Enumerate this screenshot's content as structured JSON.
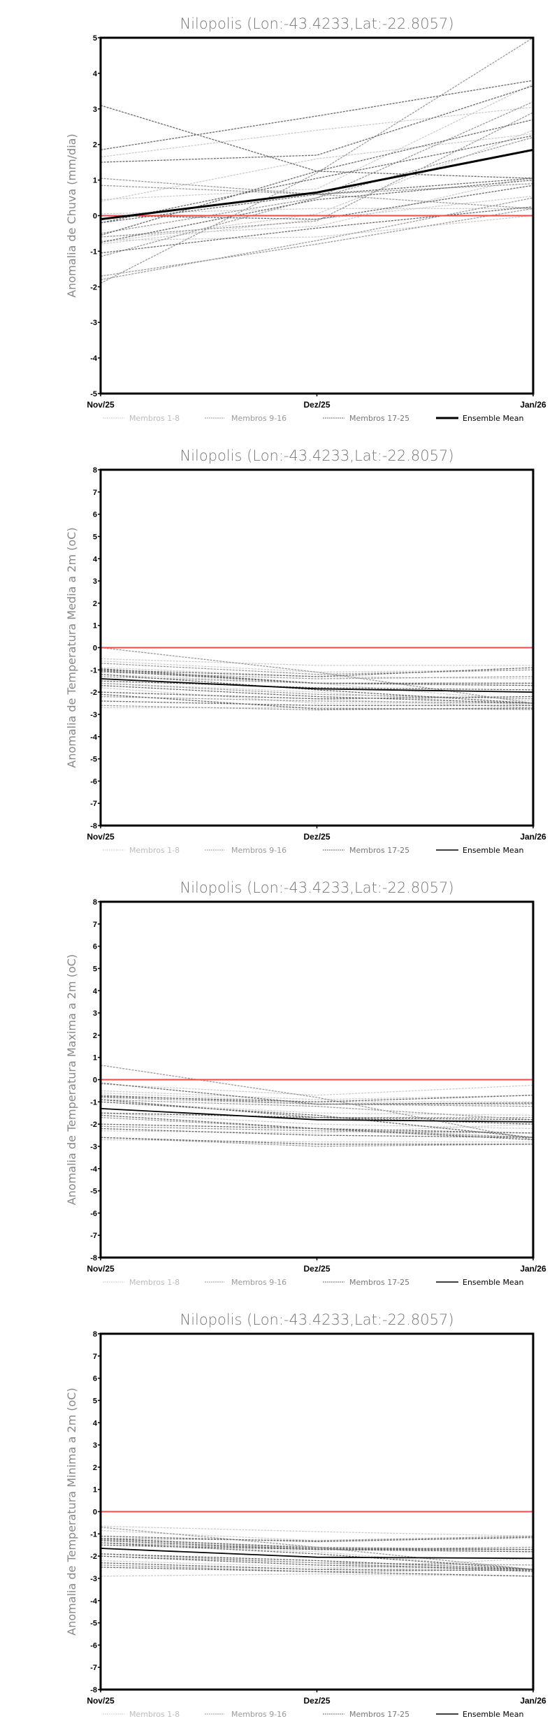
{
  "colors": {
    "members_1_8": "#cccccc",
    "members_9_16": "#9a9a9a",
    "members_17_25": "#6a6a6a",
    "ensemble": "#000000",
    "zero_line": "#f04a4a"
  },
  "chart_data": [
    {
      "type": "line",
      "title": "Nilopolis (Lon:-43.4233,Lat:-22.8057)",
      "ylabel": "Anomalia de Chuva (mm/dia)",
      "xlabel": "",
      "categories": [
        "Nov/25",
        "Dez/25",
        "Jan/26"
      ],
      "ylim": [
        -5,
        5
      ],
      "yticks": [
        -5,
        -4,
        -3,
        -2,
        -1,
        0,
        1,
        2,
        3,
        4,
        5
      ],
      "legend": [
        "Membros 1-8",
        "Membros 9-16",
        "Membros 17-25",
        "Ensemble Mean"
      ],
      "ensemble_mean": [
        -0.1,
        0.65,
        1.85
      ],
      "members": [
        [
          1.65,
          2.4,
          3.05
        ],
        [
          0.45,
          0.75,
          3.7
        ],
        [
          -0.75,
          0.05,
          2.4
        ],
        [
          -0.8,
          -0.1,
          0.55
        ],
        [
          0.4,
          1.6,
          2.3
        ],
        [
          -0.6,
          -0.3,
          1.1
        ],
        [
          0.05,
          0.2,
          0.2
        ],
        [
          -0.7,
          -0.6,
          0.0
        ],
        [
          -1.9,
          1.2,
          5.0
        ],
        [
          -1.7,
          -0.8,
          0.2
        ],
        [
          -0.5,
          0.5,
          2.2
        ],
        [
          1.05,
          0.6,
          0.2
        ],
        [
          -1.15,
          0.5,
          3.2
        ],
        [
          0.85,
          0.6,
          0.9
        ],
        [
          -1.8,
          -0.7,
          0.5
        ],
        [
          -0.6,
          -0.15,
          2.9
        ],
        [
          1.85,
          2.8,
          3.8
        ],
        [
          3.1,
          1.25,
          1.05
        ],
        [
          1.5,
          1.7,
          3.65
        ],
        [
          -0.55,
          1.25,
          2.7
        ],
        [
          -0.2,
          1.05,
          2.25
        ],
        [
          -1.05,
          -0.35,
          0.25
        ],
        [
          -0.75,
          0.45,
          1.0
        ],
        [
          0.0,
          -0.1,
          0.85
        ],
        [
          -0.2,
          0.6,
          1.05
        ]
      ]
    },
    {
      "type": "line",
      "title": "Nilopolis (Lon:-43.4233,Lat:-22.8057)",
      "ylabel": "Anomalia de Temperatura Media a 2m (oC)",
      "xlabel": "",
      "categories": [
        "Nov/25",
        "Dez/25",
        "Jan/26"
      ],
      "ylim": [
        -8,
        8
      ],
      "yticks": [
        -8,
        -7,
        -6,
        -5,
        -4,
        -3,
        -2,
        -1,
        0,
        1,
        2,
        3,
        4,
        5,
        6,
        7,
        8
      ],
      "legend": [
        "Membros 1-8",
        "Membros 9-16",
        "Membros 17-25",
        "Ensemble Mean"
      ],
      "ensemble_mean": [
        -1.4,
        -1.85,
        -2.0
      ],
      "members": [
        [
          -0.5,
          -0.8,
          -0.8
        ],
        [
          -0.6,
          -1.1,
          -1.0
        ],
        [
          -0.9,
          -1.3,
          -1.4
        ],
        [
          -1.2,
          -1.6,
          -2.4
        ],
        [
          -1.6,
          -2.0,
          -2.6
        ],
        [
          -2.0,
          -2.3,
          -2.7
        ],
        [
          -2.7,
          -2.7,
          -2.8
        ],
        [
          -1.8,
          -2.5,
          -2.5
        ],
        [
          0.0,
          -1.1,
          -2.5
        ],
        [
          -0.7,
          -1.2,
          -1.0
        ],
        [
          -1.0,
          -1.6,
          -1.7
        ],
        [
          -1.3,
          -1.6,
          -1.6
        ],
        [
          -1.6,
          -2.1,
          -2.3
        ],
        [
          -2.2,
          -2.4,
          -2.5
        ],
        [
          -2.6,
          -2.8,
          -2.7
        ],
        [
          -1.1,
          -1.4,
          -1.3
        ],
        [
          -1.0,
          -1.3,
          -0.9
        ],
        [
          -1.05,
          -1.6,
          -1.6
        ],
        [
          -1.5,
          -1.8,
          -1.9
        ],
        [
          -1.7,
          -2.2,
          -2.5
        ],
        [
          -2.0,
          -2.3,
          -2.2
        ],
        [
          -2.4,
          -2.6,
          -2.6
        ],
        [
          -1.2,
          -1.9,
          -2.5
        ],
        [
          -0.95,
          -1.6,
          -1.7
        ],
        [
          -2.1,
          -2.75,
          -2.75
        ]
      ]
    },
    {
      "type": "line",
      "title": "Nilopolis (Lon:-43.4233,Lat:-22.8057)",
      "ylabel": "Anomalia de Temperatura Maxima a 2m (oC)",
      "xlabel": "",
      "categories": [
        "Nov/25",
        "Dez/25",
        "Jan/26"
      ],
      "ylim": [
        -8,
        8
      ],
      "yticks": [
        -8,
        -7,
        -6,
        -5,
        -4,
        -3,
        -2,
        -1,
        0,
        1,
        2,
        3,
        4,
        5,
        6,
        7,
        8
      ],
      "legend": [
        "Membros 1-8",
        "Membros 9-16",
        "Membros 17-25",
        "Ensemble Mean"
      ],
      "ensemble_mean": [
        -1.3,
        -1.8,
        -1.9
      ],
      "members": [
        [
          -0.2,
          -0.7,
          -0.25
        ],
        [
          -0.5,
          -0.9,
          -0.7
        ],
        [
          -0.6,
          -1.0,
          -1.0
        ],
        [
          -1.0,
          -1.5,
          -1.6
        ],
        [
          -1.5,
          -2.0,
          -2.2
        ],
        [
          -2.1,
          -2.3,
          -2.6
        ],
        [
          -2.7,
          -2.8,
          -2.8
        ],
        [
          -2.3,
          -2.4,
          -2.0
        ],
        [
          0.65,
          -0.8,
          -2.7
        ],
        [
          -0.8,
          -1.1,
          -1.1
        ],
        [
          -0.9,
          -1.2,
          -1.8
        ],
        [
          -1.5,
          -1.7,
          -1.7
        ],
        [
          -1.7,
          -2.2,
          -2.6
        ],
        [
          -2.1,
          -2.3,
          -2.4
        ],
        [
          -2.6,
          -3.0,
          -2.9
        ],
        [
          -0.7,
          -1.1,
          -1.2
        ],
        [
          -0.75,
          -1.0,
          -0.7
        ],
        [
          -0.9,
          -1.7,
          -1.8
        ],
        [
          -1.5,
          -1.7,
          -2.0
        ],
        [
          -1.6,
          -2.2,
          -2.7
        ],
        [
          -2.0,
          -2.2,
          -2.4
        ],
        [
          -2.6,
          -2.9,
          -2.9
        ],
        [
          -1.0,
          -1.6,
          -2.6
        ],
        [
          -0.15,
          -1.1,
          -1.05
        ],
        [
          -2.2,
          -2.5,
          -2.6
        ]
      ]
    },
    {
      "type": "line",
      "title": "Nilopolis (Lon:-43.4233,Lat:-22.8057)",
      "ylabel": "Anomalia de Temperatura Minima a 2m (oC)",
      "xlabel": "",
      "categories": [
        "Nov/25",
        "Dez/25",
        "Jan/26"
      ],
      "ylim": [
        -8,
        8
      ],
      "yticks": [
        -8,
        -7,
        -6,
        -5,
        -4,
        -3,
        -2,
        -1,
        0,
        1,
        2,
        3,
        4,
        5,
        6,
        7,
        8
      ],
      "legend": [
        "Membros 1-8",
        "Membros 9-16",
        "Membros 17-25",
        "Ensemble Mean"
      ],
      "ensemble_mean": [
        -1.65,
        -2.05,
        -2.1
      ],
      "members": [
        [
          -0.65,
          -0.9,
          -1.1
        ],
        [
          -0.85,
          -1.3,
          -1.2
        ],
        [
          -1.2,
          -1.6,
          -1.7
        ],
        [
          -1.5,
          -1.8,
          -2.6
        ],
        [
          -1.9,
          -2.2,
          -2.7
        ],
        [
          -2.2,
          -2.5,
          -2.6
        ],
        [
          -2.9,
          -2.8,
          -2.9
        ],
        [
          -2.4,
          -2.6,
          -2.1
        ],
        [
          -0.7,
          -1.6,
          -2.6
        ],
        [
          -1.2,
          -1.3,
          -1.1
        ],
        [
          -1.3,
          -1.7,
          -1.8
        ],
        [
          -1.4,
          -1.7,
          -1.6
        ],
        [
          -1.9,
          -2.3,
          -2.7
        ],
        [
          -2.0,
          -2.3,
          -2.4
        ],
        [
          -2.4,
          -2.7,
          -2.6
        ],
        [
          -1.25,
          -1.6,
          -1.7
        ],
        [
          -1.1,
          -1.35,
          -1.15
        ],
        [
          -1.3,
          -1.7,
          -1.7
        ],
        [
          -1.5,
          -1.7,
          -1.8
        ],
        [
          -1.9,
          -2.2,
          -2.6
        ],
        [
          -2.0,
          -2.4,
          -2.6
        ],
        [
          -2.5,
          -2.7,
          -2.9
        ],
        [
          -1.4,
          -1.9,
          -2.6
        ],
        [
          -1.2,
          -1.65,
          -1.7
        ],
        [
          -2.3,
          -2.6,
          -2.65
        ]
      ]
    }
  ]
}
